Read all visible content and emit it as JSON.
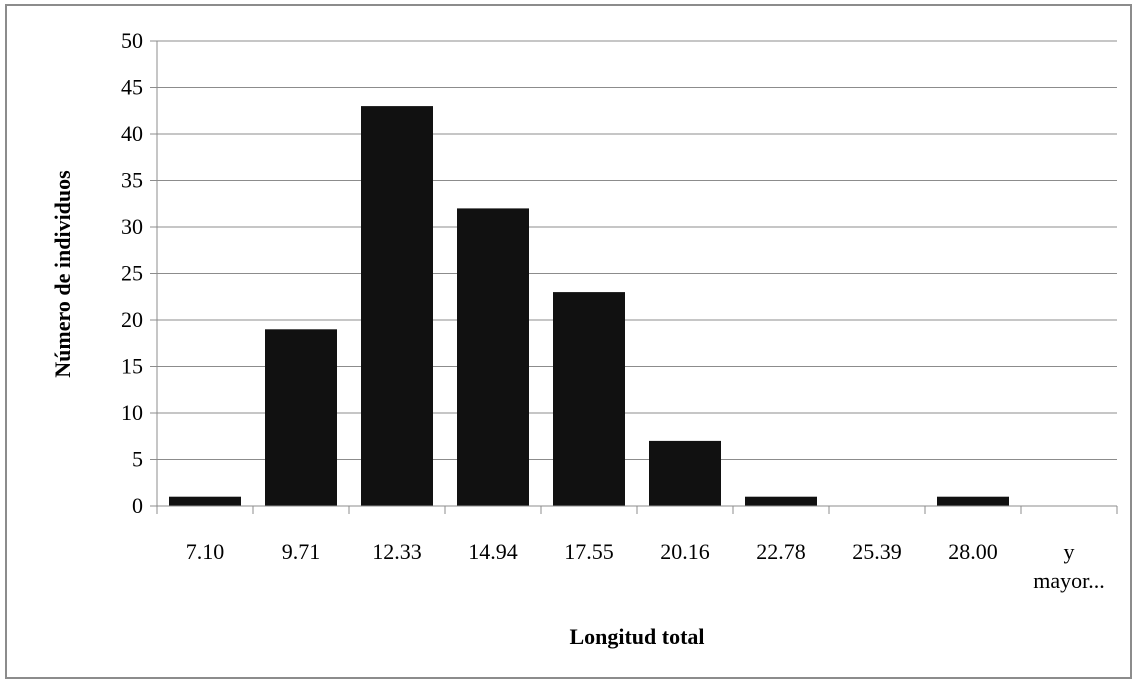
{
  "chart_data": {
    "type": "bar",
    "categories": [
      "7.10",
      "9.71",
      "12.33",
      "14.94",
      "17.55",
      "20.16",
      "22.78",
      "25.39",
      "28.00",
      "y mayor..."
    ],
    "category_lines": [
      [
        "7.10"
      ],
      [
        "9.71"
      ],
      [
        "12.33"
      ],
      [
        "14.94"
      ],
      [
        "17.55"
      ],
      [
        "20.16"
      ],
      [
        "22.78"
      ],
      [
        "25.39"
      ],
      [
        "28.00"
      ],
      [
        "y",
        "mayor..."
      ]
    ],
    "values": [
      1,
      19,
      43,
      32,
      23,
      7,
      1,
      0,
      1,
      0
    ],
    "title": "",
    "xlabel": "Longitud total",
    "ylabel": "Número de individuos",
    "ylim": [
      0,
      50
    ],
    "yticks": [
      0,
      5,
      10,
      15,
      20,
      25,
      30,
      35,
      40,
      45,
      50
    ],
    "grid": true,
    "legend": "none",
    "colors": {
      "bar": "#111111",
      "grid": "#8c8c8c",
      "axis": "#8c8c8c",
      "frame": "#8c8c8c"
    }
  }
}
